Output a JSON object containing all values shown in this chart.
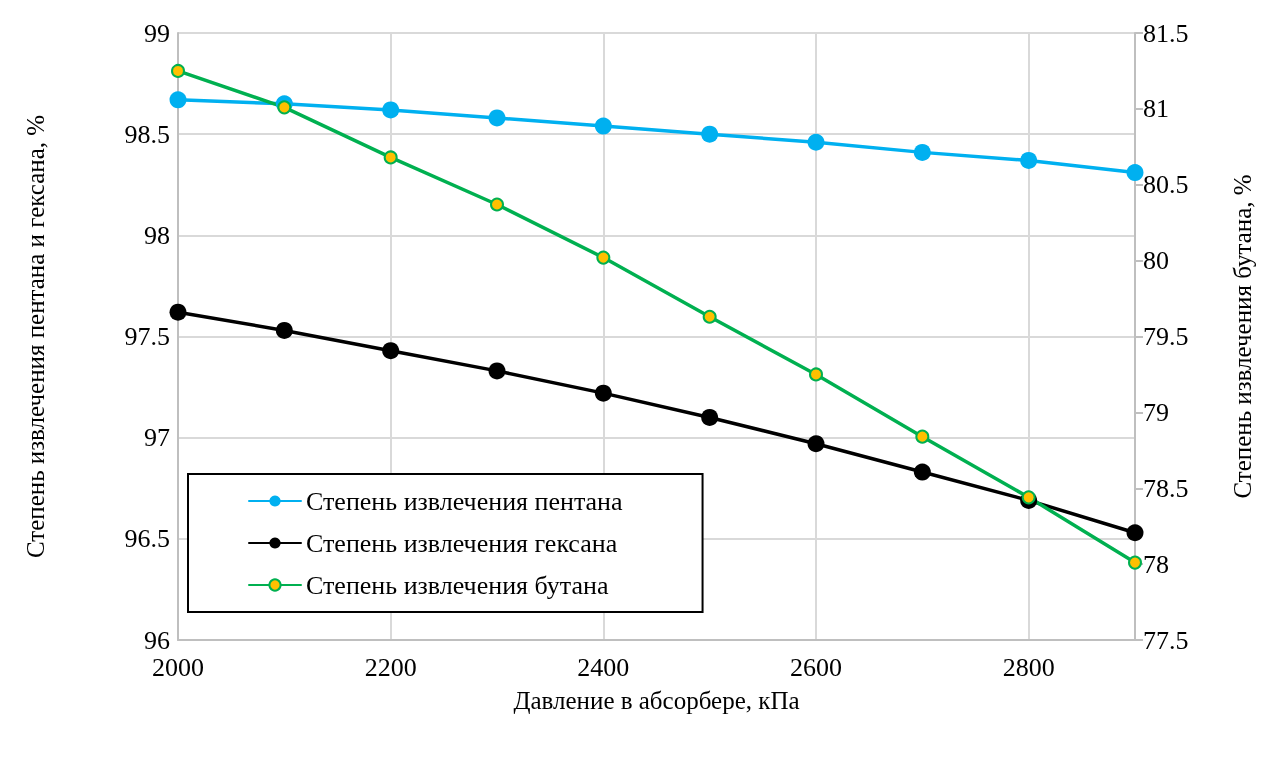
{
  "chart_data": {
    "type": "line",
    "xlabel": "Давление в абсорбере, кПа",
    "ylabel": "Степень извлечения пентана и гексана, %",
    "y2label": "Степень извлечения бутана, %",
    "x": [
      2000,
      2100,
      2200,
      2300,
      2400,
      2500,
      2600,
      2700,
      2800,
      2900
    ],
    "series": [
      {
        "name": "Степень извлечения пентана",
        "color": "#00b0f0",
        "values": [
          98.67,
          98.65,
          98.62,
          98.58,
          98.54,
          98.5,
          98.46,
          98.41,
          98.37,
          98.31
        ]
      },
      {
        "name": "Степень извлечения гексана",
        "color": "#000000",
        "values": [
          97.62,
          97.53,
          97.43,
          97.33,
          97.22,
          97.1,
          96.97,
          96.83,
          96.69,
          96.53
        ]
      },
      {
        "name": "Степень извлечения бутана",
        "color": "#00b050",
        "axis": "y2",
        "colors": [
          "#ffc000",
          "#ffc000",
          "#ffc000",
          "#ffc000",
          "#ffc000",
          "#ffc000",
          "#ffc000",
          "#ffc000",
          "#ffc000",
          "#ffc000"
        ],
        "values": [
          81.25,
          81.01,
          80.68,
          80.37,
          80.02,
          79.63,
          79.25,
          78.84,
          78.44,
          78.01
        ]
      }
    ],
    "xlim": [
      2000,
      2900
    ],
    "xticks": [
      2000,
      2200,
      2400,
      2600,
      2800
    ],
    "ylim": [
      96,
      99
    ],
    "yticks": [
      96,
      96.5,
      97,
      97.5,
      98,
      98.5,
      99
    ],
    "y2lim": [
      77.5,
      81.5
    ],
    "y2ticks": [
      77.5,
      78,
      78.5,
      79,
      79.5,
      80,
      80.5,
      81,
      81.5
    ],
    "grid": true,
    "legend": "bottom left",
    "marker": "circle",
    "line_style": "solid"
  }
}
